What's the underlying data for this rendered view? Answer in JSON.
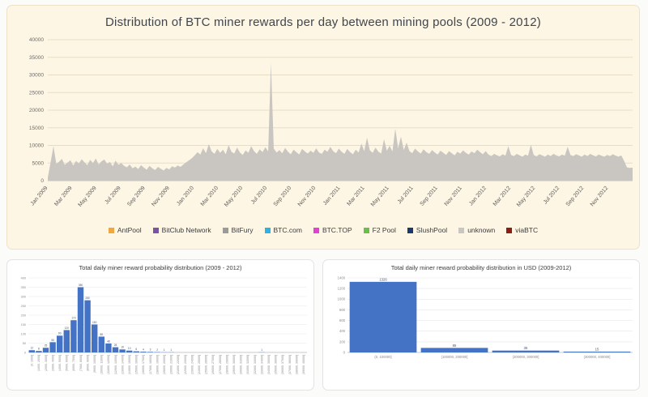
{
  "chart_data": [
    {
      "type": "area",
      "title": "Distribution of BTC miner rewards per day between mining pools (2009 - 2012)",
      "ylim": [
        0,
        40000
      ],
      "yticks": [
        0,
        5000,
        10000,
        15000,
        20000,
        25000,
        30000,
        35000,
        40000
      ],
      "x_tick_labels": [
        "Jan 2009",
        "Mar 2009",
        "May 2009",
        "Jul 2009",
        "Sep 2009",
        "Nov 2009",
        "Jan 2010",
        "Mar 2010",
        "May 2010",
        "Jul 2010",
        "Sep 2010",
        "Nov 2010",
        "Jan 2011",
        "Mar 2011",
        "May 2011",
        "Jul 2011",
        "Sep 2011",
        "Nov 2011",
        "Jan 2012",
        "Mar 2012",
        "May 2012",
        "Jul 2012",
        "Sep 2012",
        "Nov 2012"
      ],
      "x_span_months": 48,
      "sampling": "weekly",
      "grid": true,
      "legend_position": "bottom",
      "legend": [
        {
          "label": "AntPool",
          "color": "#f2a73b"
        },
        {
          "label": "BitClub Network",
          "color": "#7a52a8"
        },
        {
          "label": "BitFury",
          "color": "#9b9b9b"
        },
        {
          "label": "BTC.com",
          "color": "#2bb3e6"
        },
        {
          "label": "BTC.TOP",
          "color": "#e53fd7"
        },
        {
          "label": "F2 Pool",
          "color": "#6abf4b"
        },
        {
          "label": "SlushPool",
          "color": "#1b3a6b"
        },
        {
          "label": "unknown",
          "color": "#c9c6c1"
        },
        {
          "label": "viaBTC",
          "color": "#8b1d12"
        }
      ],
      "series": [
        {
          "name": "unknown",
          "color": "#c9c6c1",
          "values": [
            900,
            5200,
            9800,
            4800,
            5400,
            6200,
            4500,
            5100,
            5800,
            4300,
            5600,
            4900,
            6100,
            5200,
            4400,
            5900,
            5000,
            6300,
            4600,
            5500,
            6000,
            4800,
            5300,
            4100,
            5700,
            4500,
            5000,
            4200,
            3800,
            4600,
            3500,
            4000,
            3300,
            4400,
            3700,
            3100,
            4200,
            3500,
            3000,
            3900,
            3400,
            2900,
            3600,
            3200,
            4100,
            3700,
            4300,
            3900,
            4600,
            5200,
            5800,
            6400,
            7200,
            8100,
            7400,
            9200,
            7800,
            10400,
            8300,
            7600,
            9000,
            7900,
            8800,
            7500,
            10100,
            8200,
            7700,
            9400,
            8000,
            7300,
            8600,
            7900,
            9800,
            8400,
            7600,
            8900,
            8100,
            9500,
            8300,
            33500,
            9100,
            8000,
            8700,
            7800,
            9300,
            8200,
            7500,
            8800,
            8100,
            7400,
            9000,
            8300,
            7700,
            8500,
            7900,
            9200,
            8000,
            7600,
            8800,
            8200,
            9600,
            8400,
            7800,
            9100,
            8200,
            7600,
            9000,
            8100,
            7500,
            8800,
            8000,
            10500,
            8400,
            12200,
            8600,
            7900,
            9400,
            8200,
            7700,
            11800,
            8500,
            9900,
            8300,
            14800,
            9200,
            12500,
            8700,
            10800,
            8400,
            7800,
            9100,
            8300,
            7700,
            8900,
            8100,
            7600,
            8700,
            8000,
            7400,
            8500,
            7900,
            7300,
            8400,
            7800,
            7200,
            8200,
            7700,
            8600,
            7900,
            7400,
            8300,
            7800,
            8800,
            8100,
            7500,
            8400,
            7400,
            7000,
            7600,
            7200,
            6900,
            7500,
            7100,
            9800,
            7300,
            7000,
            7600,
            7200,
            6800,
            7400,
            7100,
            10200,
            7300,
            6900,
            7500,
            7200,
            6800,
            7400,
            7000,
            7600,
            7200,
            6900,
            7400,
            7100,
            9600,
            7300,
            7000,
            7500,
            7200,
            6800,
            7400,
            7000,
            7600,
            7200,
            6900,
            7400,
            7100,
            6800,
            7300,
            7000,
            7500,
            7100,
            6800,
            7200,
            5600,
            3800,
            3600,
            3700
          ]
        }
      ]
    },
    {
      "type": "bar",
      "title": "Total daily miner reward probability distribution (2009 - 2012)",
      "bar_color": "#4472c4",
      "ylim": [
        0,
        400
      ],
      "yticks": [
        0,
        50,
        100,
        150,
        200,
        250,
        300,
        350,
        400
      ],
      "categories": [
        "(0, 1000]",
        "(1000, 2000]",
        "(2000, 3000]",
        "(3000, 4000]",
        "(4000, 5000]",
        "(5000, 6000]",
        "(6000, 7000]",
        "(7000, 8000]",
        "(8000, 9000]",
        "(9000, 10000]",
        "(10000, 11000]",
        "(11000, 12000]",
        "(12000, 13000]",
        "(13000, 14000]",
        "(14000, 15000]",
        "(15000, 16000]",
        "(16000, 17000]",
        "(17000, 18000]",
        "(18000, 19000]",
        "(19000, 20000]",
        "(20000, 21000]",
        "(21000, 22000]",
        "(22000, 23000]",
        "(23000, 24000]",
        "(24000, 25000]",
        "(25000, 26000]",
        "(26000, 27000]",
        "(27000, 28000]",
        "(28000, 29000]",
        "(29000, 30000]",
        "(30000, 31000]",
        "(31000, 32000]",
        "(32000, 33000]",
        "(33000, 34000]",
        "(34000, 35000]",
        "(35000, 36000]",
        "(36000, 37000]",
        "(37000, 38000]",
        "(38000, 39000]",
        "(39000, 40000]"
      ],
      "values": [
        12,
        8,
        25,
        55,
        90,
        120,
        173,
        350,
        280,
        150,
        85,
        48,
        28,
        16,
        10,
        6,
        4,
        3,
        2,
        1,
        1,
        0,
        0,
        0,
        0,
        0,
        0,
        0,
        0,
        0,
        0,
        0,
        0,
        1,
        0,
        0,
        0,
        0,
        0,
        0
      ]
    },
    {
      "type": "bar",
      "title": "Total daily miner reward probability distribution in USD (2009-2012)",
      "bar_color": "#4472c4",
      "ylim": [
        0,
        1400
      ],
      "yticks": [
        0,
        200,
        400,
        600,
        800,
        1000,
        1200,
        1400
      ],
      "categories": [
        "(0, 100000]",
        "(100000, 200000]",
        "(200000, 300000]",
        "(300000, 400000]"
      ],
      "values": [
        1326,
        85,
        35,
        15
      ]
    }
  ]
}
